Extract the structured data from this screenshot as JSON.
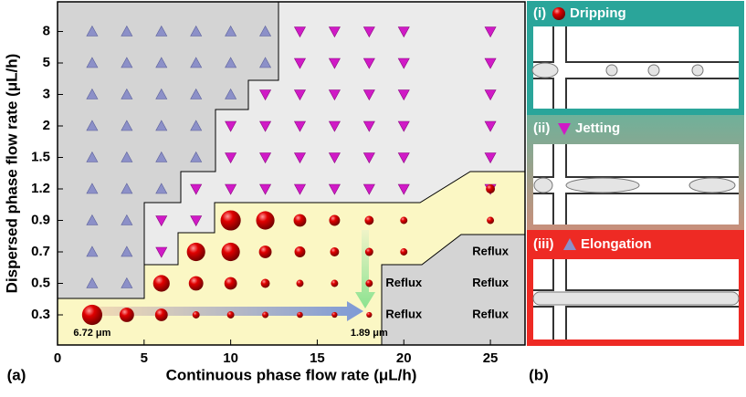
{
  "chart_data": {
    "type": "scatter",
    "xlabel": "Continuous phase flow rate (μL/h)",
    "ylabel": "Dispersed phase flow rate (μL/h)",
    "xlim": [
      0,
      27
    ],
    "xticks": [
      0,
      5,
      10,
      15,
      20,
      25
    ],
    "y_categories": [
      0.3,
      0.5,
      0.7,
      0.9,
      1.2,
      1.5,
      2,
      3,
      5,
      8
    ],
    "series": [
      {
        "name": "Elongation",
        "marker": "triangle-up",
        "color": "#8c90c8",
        "x": [
          2,
          4,
          6,
          8,
          10,
          12,
          2,
          4,
          6,
          8,
          10,
          12,
          2,
          4,
          6,
          8,
          10,
          2,
          4,
          6,
          8,
          2,
          4,
          6,
          8,
          2,
          4,
          6,
          2,
          4,
          2,
          4,
          2,
          4
        ],
        "y": [
          8,
          8,
          8,
          8,
          8,
          8,
          5,
          5,
          5,
          5,
          5,
          5,
          3,
          3,
          3,
          3,
          3,
          2,
          2,
          2,
          2,
          1.5,
          1.5,
          1.5,
          1.5,
          1.2,
          1.2,
          1.2,
          0.9,
          0.9,
          0.7,
          0.7,
          0.5,
          0.5
        ]
      },
      {
        "name": "Jetting",
        "marker": "triangle-down",
        "color": "#d01ac6",
        "x": [
          14,
          16,
          18,
          20,
          25,
          14,
          16,
          18,
          20,
          25,
          12,
          14,
          16,
          18,
          20,
          25,
          10,
          12,
          14,
          16,
          18,
          20,
          25,
          10,
          12,
          14,
          16,
          18,
          20,
          25,
          8,
          10,
          12,
          14,
          16,
          18,
          20,
          25,
          6,
          8,
          6
        ],
        "y": [
          8,
          8,
          8,
          8,
          8,
          5,
          5,
          5,
          5,
          5,
          3,
          3,
          3,
          3,
          3,
          3,
          2,
          2,
          2,
          2,
          2,
          2,
          2,
          1.5,
          1.5,
          1.5,
          1.5,
          1.5,
          1.5,
          1.5,
          1.2,
          1.2,
          1.2,
          1.2,
          1.2,
          1.2,
          1.2,
          1.2,
          0.9,
          0.9,
          0.7
        ]
      },
      {
        "name": "Dripping",
        "marker": "sphere",
        "color": "#e00000",
        "x": [
          25,
          10,
          12,
          14,
          16,
          18,
          20,
          25,
          8,
          10,
          12,
          14,
          16,
          18,
          20,
          6,
          8,
          10,
          12,
          14,
          16,
          18,
          2,
          4,
          6,
          8,
          10,
          12,
          14,
          16,
          18
        ],
        "y": [
          1.2,
          0.9,
          0.9,
          0.9,
          0.9,
          0.9,
          0.9,
          0.9,
          0.7,
          0.7,
          0.7,
          0.7,
          0.7,
          0.7,
          0.7,
          0.5,
          0.5,
          0.5,
          0.5,
          0.5,
          0.5,
          0.5,
          0.3,
          0.3,
          0.3,
          0.3,
          0.3,
          0.3,
          0.3,
          0.3,
          0.3
        ],
        "sizes": [
          3.0,
          6.7,
          6.1,
          4.2,
          3.6,
          3.0,
          2.4,
          2.4,
          6.1,
          6.1,
          4.2,
          3.6,
          3.0,
          2.7,
          2.4,
          5.5,
          4.8,
          4.2,
          3.0,
          2.4,
          2.4,
          2.4,
          6.72,
          4.8,
          4.2,
          2.4,
          2.4,
          2.1,
          2.0,
          1.9,
          1.89
        ]
      }
    ],
    "annotations": [
      {
        "text": "Reflux",
        "x": 20,
        "y": 0.5
      },
      {
        "text": "Reflux",
        "x": 20,
        "y": 0.3
      },
      {
        "text": "Reflux",
        "x": 25,
        "y": 0.7
      },
      {
        "text": "Reflux",
        "x": 25,
        "y": 0.5
      },
      {
        "text": "Reflux",
        "x": 25,
        "y": 0.3
      },
      {
        "text": "6.72 μm",
        "x": 2,
        "y": 0.3
      },
      {
        "text": "1.89 μm",
        "x": 18,
        "y": 0.3
      }
    ],
    "panel_labels": [
      "(a)",
      "(b)"
    ],
    "image_labels": [
      "(i)",
      "(ii)",
      "(iii)"
    ]
  }
}
